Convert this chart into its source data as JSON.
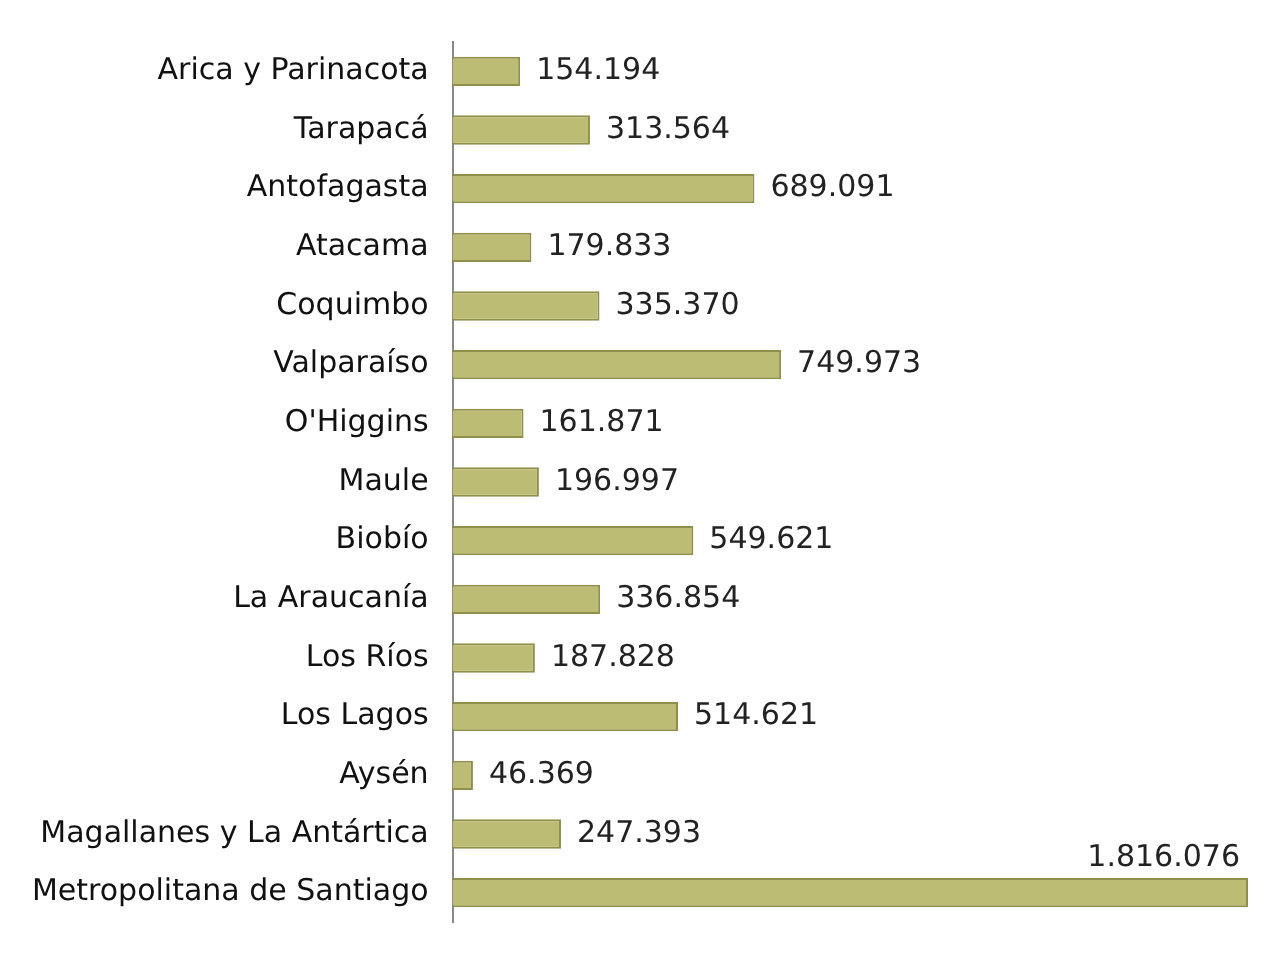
{
  "chart_data": {
    "type": "bar",
    "orientation": "horizontal",
    "categories": [
      "Arica y Parinacota",
      "Tarapacá",
      "Antofagasta",
      "Atacama",
      "Coquimbo",
      "Valparaíso",
      "O'Higgins",
      "Maule",
      "Biobío",
      "La Araucanía",
      "Los Ríos",
      "Los Lagos",
      "Aysén",
      "Magallanes y La Antártica",
      "Metropolitana de Santiago"
    ],
    "values": [
      154194,
      313564,
      689091,
      179833,
      335370,
      749973,
      161871,
      196997,
      549621,
      336854,
      187828,
      514621,
      46369,
      247393,
      1816076
    ],
    "value_labels": [
      "154.194",
      "313.564",
      "689.091",
      "179.833",
      "335.370",
      "749.973",
      "161.871",
      "196.997",
      "549.621",
      "336.854",
      "187.828",
      "514.621",
      "46.369",
      "247.393",
      "1.816.076"
    ],
    "color": "#bcbc74",
    "xlim": [
      0,
      1816076
    ],
    "tick_labels": "y",
    "grid": false,
    "legend": false
  }
}
